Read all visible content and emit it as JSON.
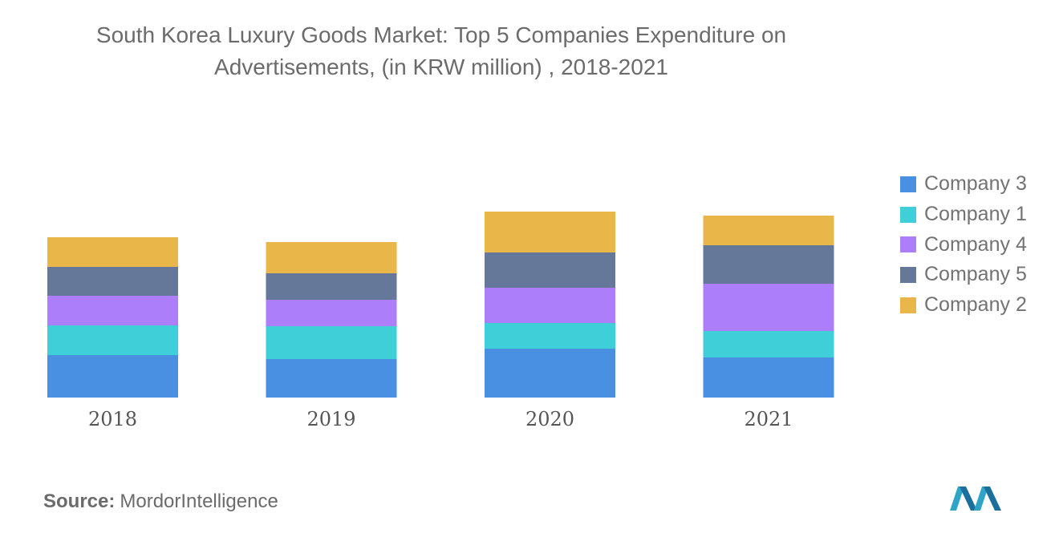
{
  "title_lines": [
    "South Korea Luxury Goods Market: Top 5 Companies Expenditure on",
    "Advertisements, (in KRW million) , 2018-2021"
  ],
  "source": {
    "label": "Source:",
    "value": "MordorIntelligence"
  },
  "logo": {
    "icon": "mordor-intelligence-logo-icon"
  },
  "colors": {
    "Company 3": "#4a90e2",
    "Company 1": "#3ecfd8",
    "Company 4": "#ac7ef9",
    "Company 5": "#66789a",
    "Company 2": "#e9b64a"
  },
  "chart_data": {
    "type": "bar",
    "stacked": true,
    "title": "South Korea Luxury Goods Market: Top 5 Companies Expenditure on Advertisements, (in KRW million) , 2018-2021",
    "xlabel": "",
    "ylabel": "",
    "categories": [
      "2018",
      "2019",
      "2020",
      "2021"
    ],
    "series": [
      {
        "name": "Company 3",
        "values": [
          53,
          48,
          61,
          50
        ]
      },
      {
        "name": "Company 1",
        "values": [
          37,
          41,
          32,
          33
        ]
      },
      {
        "name": "Company 4",
        "values": [
          37,
          33,
          44,
          59
        ]
      },
      {
        "name": "Company 5",
        "values": [
          36,
          33,
          44,
          48
        ]
      },
      {
        "name": "Company 2",
        "values": [
          37,
          39,
          51,
          37
        ]
      }
    ],
    "ylim": [
      0,
      231
    ],
    "grid": false,
    "y_axis_visible": false,
    "legend_position": "right"
  }
}
